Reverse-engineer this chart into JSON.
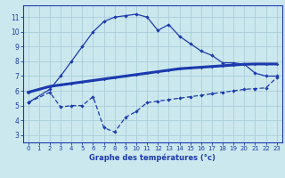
{
  "bg_color": "#cce8ef",
  "grid_color": "#aacdd8",
  "line_color": "#1a3aad",
  "x_ticks": [
    0,
    1,
    2,
    3,
    4,
    5,
    6,
    7,
    8,
    9,
    10,
    11,
    12,
    13,
    14,
    15,
    16,
    17,
    18,
    19,
    20,
    21,
    22,
    23
  ],
  "y_ticks": [
    3,
    4,
    5,
    6,
    7,
    8,
    9,
    10,
    11
  ],
  "ylim": [
    2.5,
    11.8
  ],
  "xlim": [
    -0.5,
    23.5
  ],
  "xlabel": "Graphe des températures (°c)",
  "line1_x": [
    0,
    2,
    3,
    4,
    5,
    6,
    7,
    8,
    9,
    10,
    11,
    12,
    13,
    14,
    15,
    16,
    17,
    18,
    19,
    20,
    21,
    22,
    23
  ],
  "line1_y": [
    5.2,
    6.1,
    7.0,
    8.0,
    9.0,
    10.0,
    10.7,
    11.0,
    11.1,
    11.2,
    11.0,
    10.1,
    10.5,
    9.7,
    9.2,
    8.7,
    8.4,
    7.9,
    7.9,
    7.8,
    7.2,
    7.0,
    7.0
  ],
  "line2_x": [
    0,
    2,
    3,
    4,
    5,
    6,
    7,
    8,
    9,
    10,
    11,
    12,
    13,
    14,
    15,
    16,
    17,
    18,
    19,
    20,
    21,
    22,
    23
  ],
  "line2_y": [
    5.9,
    6.3,
    6.4,
    6.5,
    6.6,
    6.7,
    6.8,
    6.9,
    7.0,
    7.1,
    7.2,
    7.3,
    7.4,
    7.5,
    7.55,
    7.6,
    7.65,
    7.7,
    7.75,
    7.8,
    7.82,
    7.82,
    7.82
  ],
  "line3_x": [
    0,
    2,
    3,
    4,
    5,
    6,
    7,
    8,
    9,
    10,
    11,
    12,
    13,
    14,
    15,
    16,
    17,
    18,
    19,
    20,
    21,
    22,
    23
  ],
  "line3_y": [
    5.2,
    5.9,
    4.9,
    5.0,
    5.0,
    5.6,
    3.5,
    3.2,
    4.2,
    4.6,
    5.2,
    5.3,
    5.4,
    5.5,
    5.6,
    5.7,
    5.8,
    5.9,
    6.0,
    6.1,
    6.15,
    6.2,
    6.9
  ],
  "title_color": "#1a3aad",
  "label_fontsize": 6.0,
  "tick_fontsize": 5.0
}
